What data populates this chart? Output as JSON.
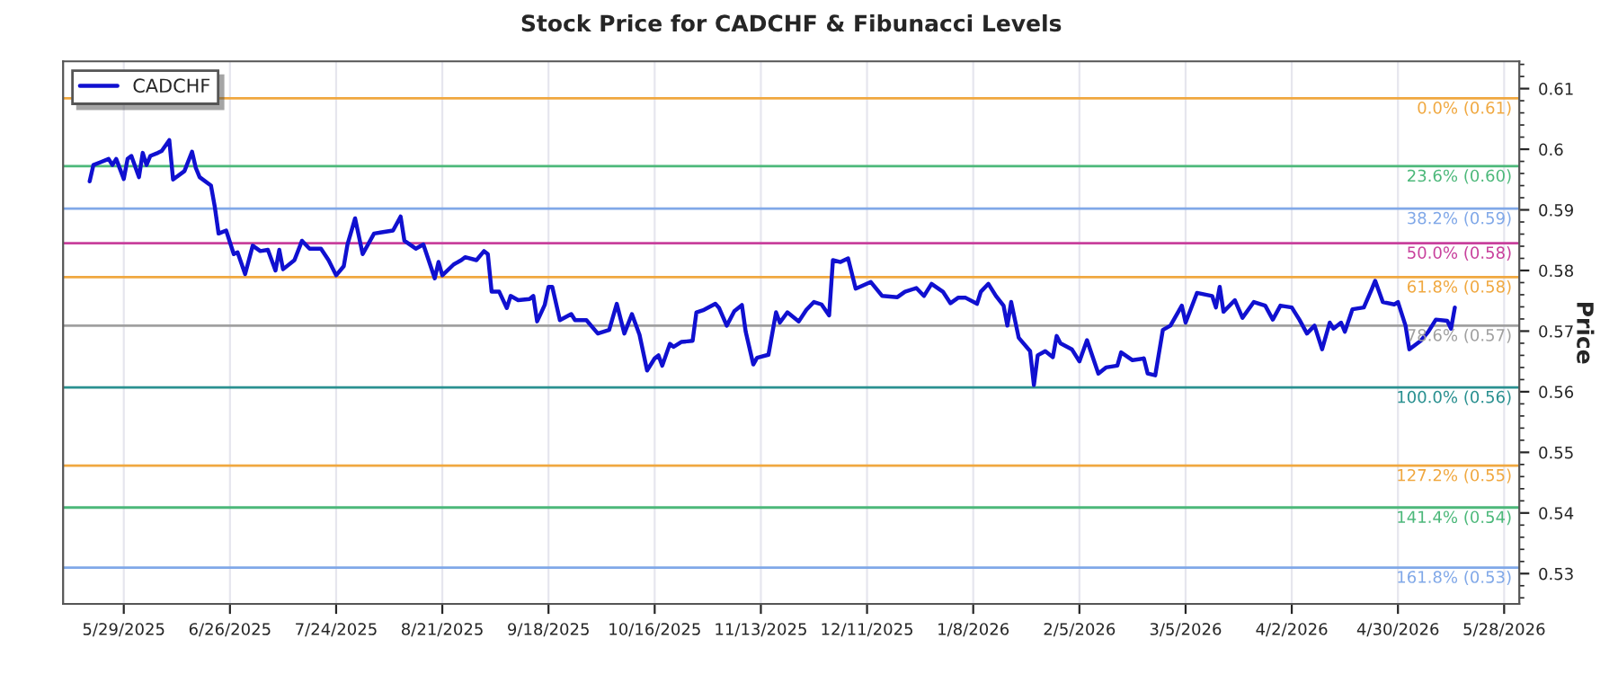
{
  "chart_data": {
    "type": "line",
    "title": "Stock Price for CADCHF & Fibunacci Levels",
    "ylabel": "Price",
    "x": [
      "2025-05-20",
      "2025-05-21",
      "2025-05-23",
      "2025-05-25",
      "2025-05-26",
      "2025-05-27",
      "2025-05-29",
      "2025-05-30",
      "2025-05-31",
      "2025-06-02",
      "2025-06-03",
      "2025-06-04",
      "2025-06-05",
      "2025-06-07",
      "2025-06-08",
      "2025-06-10",
      "2025-06-11",
      "2025-06-14",
      "2025-06-16",
      "2025-06-17",
      "2025-06-18",
      "2025-06-21",
      "2025-06-22",
      "2025-06-23",
      "2025-06-25",
      "2025-06-27",
      "2025-06-28",
      "2025-06-30",
      "2025-07-02",
      "2025-07-04",
      "2025-07-06",
      "2025-07-08",
      "2025-07-09",
      "2025-07-10",
      "2025-07-13",
      "2025-07-15",
      "2025-07-17",
      "2025-07-20",
      "2025-07-22",
      "2025-07-24",
      "2025-07-26",
      "2025-07-27",
      "2025-07-29",
      "2025-07-31",
      "2025-08-03",
      "2025-08-05",
      "2025-08-08",
      "2025-08-10",
      "2025-08-11",
      "2025-08-14",
      "2025-08-16",
      "2025-08-19",
      "2025-08-20",
      "2025-08-21",
      "2025-08-24",
      "2025-08-26",
      "2025-08-27",
      "2025-08-30",
      "2025-09-01",
      "2025-09-02",
      "2025-09-03",
      "2025-09-05",
      "2025-09-07",
      "2025-09-08",
      "2025-09-10",
      "2025-09-13",
      "2025-09-14",
      "2025-09-15",
      "2025-09-17",
      "2025-09-18",
      "2025-09-19",
      "2025-09-21",
      "2025-09-24",
      "2025-09-25",
      "2025-09-28",
      "2025-10-01",
      "2025-10-04",
      "2025-10-06",
      "2025-10-08",
      "2025-10-10",
      "2025-10-12",
      "2025-10-14",
      "2025-10-16",
      "2025-10-17",
      "2025-10-18",
      "2025-10-20",
      "2025-10-21",
      "2025-10-23",
      "2025-10-26",
      "2025-10-27",
      "2025-10-29",
      "2025-11-01",
      "2025-11-02",
      "2025-11-04",
      "2025-11-06",
      "2025-11-08",
      "2025-11-09",
      "2025-11-11",
      "2025-11-12",
      "2025-11-15",
      "2025-11-17",
      "2025-11-18",
      "2025-11-20",
      "2025-11-23",
      "2025-11-25",
      "2025-11-27",
      "2025-11-29",
      "2025-12-01",
      "2025-12-02",
      "2025-12-04",
      "2025-12-06",
      "2025-12-08",
      "2025-12-12",
      "2025-12-15",
      "2025-12-19",
      "2025-12-21",
      "2025-12-24",
      "2025-12-26",
      "2025-12-28",
      "2025-12-31",
      "2026-01-02",
      "2026-01-04",
      "2026-01-06",
      "2026-01-09",
      "2026-01-10",
      "2026-01-12",
      "2026-01-14",
      "2026-01-16",
      "2026-01-17",
      "2026-01-18",
      "2026-01-20",
      "2026-01-23",
      "2026-01-24",
      "2026-01-25",
      "2026-01-27",
      "2026-01-29",
      "2026-01-30",
      "2026-01-31",
      "2026-02-03",
      "2026-02-05",
      "2026-02-07",
      "2026-02-10",
      "2026-02-12",
      "2026-02-15",
      "2026-02-16",
      "2026-02-19",
      "2026-02-22",
      "2026-02-23",
      "2026-02-25",
      "2026-02-27",
      "2026-03-01",
      "2026-03-04",
      "2026-03-05",
      "2026-03-08",
      "2026-03-12",
      "2026-03-13",
      "2026-03-14",
      "2026-03-15",
      "2026-03-18",
      "2026-03-20",
      "2026-03-23",
      "2026-03-26",
      "2026-03-28",
      "2026-03-30",
      "2026-04-02",
      "2026-04-04",
      "2026-04-06",
      "2026-04-08",
      "2026-04-10",
      "2026-04-12",
      "2026-04-13",
      "2026-04-15",
      "2026-04-16",
      "2026-04-18",
      "2026-04-21",
      "2026-04-23",
      "2026-04-24",
      "2026-04-26",
      "2026-04-29",
      "2026-04-30",
      "2026-05-02",
      "2026-05-03",
      "2026-05-06",
      "2026-05-08",
      "2026-05-10",
      "2026-05-13",
      "2026-05-14",
      "2026-05-15"
    ],
    "series": [
      {
        "name": "CADCHF",
        "color": "#1010d0",
        "values": [
          0.5947,
          0.5974,
          0.5979,
          0.5984,
          0.5974,
          0.5984,
          0.5951,
          0.5984,
          0.5989,
          0.5954,
          0.5994,
          0.5974,
          0.5989,
          0.5994,
          0.5997,
          0.6015,
          0.595,
          0.5964,
          0.5996,
          0.5969,
          0.5954,
          0.594,
          0.5905,
          0.5861,
          0.5866,
          0.5827,
          0.583,
          0.5794,
          0.5841,
          0.5832,
          0.5834,
          0.58,
          0.5834,
          0.5802,
          0.5817,
          0.5849,
          0.5836,
          0.5836,
          0.5817,
          0.5792,
          0.5807,
          0.5843,
          0.5886,
          0.5827,
          0.5861,
          0.5863,
          0.5866,
          0.5889,
          0.5849,
          0.5836,
          0.5843,
          0.5787,
          0.5814,
          0.5792,
          0.581,
          0.5817,
          0.5822,
          0.5817,
          0.5832,
          0.5827,
          0.5765,
          0.5765,
          0.5738,
          0.5758,
          0.5751,
          0.5753,
          0.5758,
          0.5716,
          0.5743,
          0.5773,
          0.5773,
          0.5718,
          0.5728,
          0.5718,
          0.5718,
          0.5696,
          0.5702,
          0.5745,
          0.5696,
          0.5728,
          0.5694,
          0.5635,
          0.5655,
          0.566,
          0.5643,
          0.5679,
          0.5674,
          0.5682,
          0.5684,
          0.5731,
          0.5735,
          0.5745,
          0.5738,
          0.5709,
          0.5733,
          0.5743,
          0.5699,
          0.5645,
          0.5656,
          0.5661,
          0.5731,
          0.5714,
          0.5731,
          0.5716,
          0.5735,
          0.5748,
          0.5744,
          0.5726,
          0.5817,
          0.5814,
          0.582,
          0.577,
          0.5781,
          0.5758,
          0.5756,
          0.5765,
          0.5771,
          0.5758,
          0.5778,
          0.5765,
          0.5746,
          0.5755,
          0.5755,
          0.5745,
          0.5765,
          0.5778,
          0.5758,
          0.5742,
          0.5709,
          0.5748,
          0.5689,
          0.5667,
          0.5611,
          0.566,
          0.5667,
          0.5657,
          0.5692,
          0.568,
          0.567,
          0.565,
          0.5685,
          0.563,
          0.564,
          0.5643,
          0.5665,
          0.5652,
          0.5655,
          0.563,
          0.5627,
          0.5702,
          0.5709,
          0.5742,
          0.5714,
          0.5763,
          0.5758,
          0.5739,
          0.5773,
          0.5732,
          0.5751,
          0.5722,
          0.5748,
          0.5742,
          0.5719,
          0.5742,
          0.5739,
          0.5719,
          0.5696,
          0.5709,
          0.567,
          0.5714,
          0.5704,
          0.5714,
          0.5699,
          0.5736,
          0.5739,
          0.5768,
          0.5783,
          0.5748,
          0.5744,
          0.5748,
          0.5709,
          0.567,
          0.5684,
          0.5699,
          0.5719,
          0.5717,
          0.5704,
          0.5739
        ]
      }
    ],
    "xlim": [
      "2025-05-13",
      "2026-06-01"
    ],
    "xticks": [
      {
        "value": "2025-05-29",
        "label": "5/29/2025"
      },
      {
        "value": "2025-06-26",
        "label": "6/26/2025"
      },
      {
        "value": "2025-07-24",
        "label": "7/24/2025"
      },
      {
        "value": "2025-08-21",
        "label": "8/21/2025"
      },
      {
        "value": "2025-09-18",
        "label": "9/18/2025"
      },
      {
        "value": "2025-10-16",
        "label": "10/16/2025"
      },
      {
        "value": "2025-11-13",
        "label": "11/13/2025"
      },
      {
        "value": "2025-12-11",
        "label": "12/11/2025"
      },
      {
        "value": "2026-01-08",
        "label": "1/8/2026"
      },
      {
        "value": "2026-02-05",
        "label": "2/5/2026"
      },
      {
        "value": "2026-03-05",
        "label": "3/5/2026"
      },
      {
        "value": "2026-04-02",
        "label": "4/2/2026"
      },
      {
        "value": "2026-04-30",
        "label": "4/30/2026"
      },
      {
        "value": "2026-05-28",
        "label": "5/28/2026"
      }
    ],
    "ylim": [
      0.525,
      0.6145
    ],
    "yticks": [
      0.53,
      0.54,
      0.55,
      0.56,
      0.57,
      0.58,
      0.59,
      0.6,
      0.61
    ],
    "ref_lines": [
      {
        "axis": "y",
        "value": 0.6084,
        "label": "0.0% (0.61)",
        "color": "#f0a840"
      },
      {
        "axis": "y",
        "value": 0.5972,
        "label": "23.6% (0.60)",
        "color": "#4cb87a"
      },
      {
        "axis": "y",
        "value": 0.5902,
        "label": "38.2% (0.59)",
        "color": "#80a8e8"
      },
      {
        "axis": "y",
        "value": 0.5845,
        "label": "50.0% (0.58)",
        "color": "#c8409c"
      },
      {
        "axis": "y",
        "value": 0.5789,
        "label": "61.8% (0.58)",
        "color": "#f0a840"
      },
      {
        "axis": "y",
        "value": 0.5709,
        "label": "78.6% (0.57)",
        "color": "#a0a0a0"
      },
      {
        "axis": "y",
        "value": 0.5607,
        "label": "100.0% (0.56)",
        "color": "#2a9090"
      },
      {
        "axis": "y",
        "value": 0.5478,
        "label": "127.2% (0.55)",
        "color": "#f0a840"
      },
      {
        "axis": "y",
        "value": 0.5409,
        "label": "141.4% (0.54)",
        "color": "#4cb87a"
      },
      {
        "axis": "y",
        "value": 0.531,
        "label": "161.8% (0.53)",
        "color": "#80a8e8"
      }
    ],
    "grid": "x",
    "legend": "top left",
    "line_style": "solid",
    "marker": "none"
  }
}
